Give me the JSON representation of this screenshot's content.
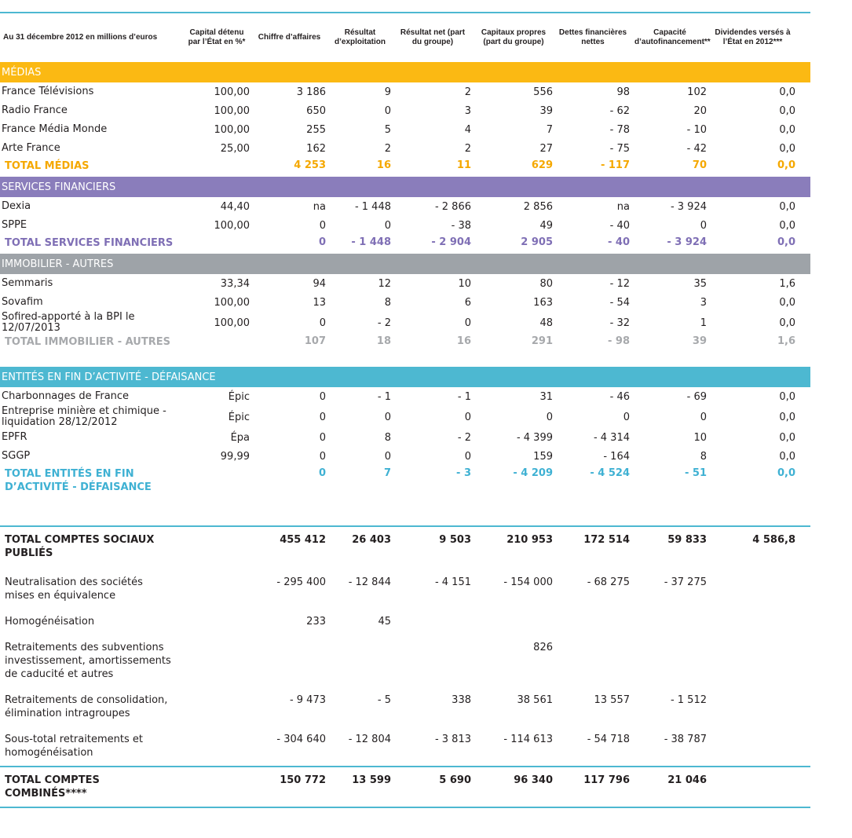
{
  "table": {
    "header": [
      "Au 31 décembre 2012 en millions d’euros",
      "Capital détenu par l’État en %*",
      "Chiffre d’affaires",
      "Résultat d’exploitation",
      "Résultat net (part du groupe)",
      "Capitaux propres (part du groupe)",
      "Dettes financières nettes",
      "Capacité d’autofinancement**",
      "Dividendes versés à l’État en 2012***"
    ],
    "sections": [
      {
        "title": "MÉDIAS",
        "rows": [
          {
            "label": "France Télévisions",
            "cells": [
              "100,00",
              "3 186",
              "9",
              "2",
              "556",
              "98",
              "102",
              "0,0"
            ]
          },
          {
            "label": "Radio France",
            "cells": [
              "100,00",
              "650",
              "0",
              "3",
              "39",
              "- 62",
              "20",
              "0,0"
            ]
          },
          {
            "label": "France Média Monde",
            "cells": [
              "100,00",
              "255",
              "5",
              "4",
              "7",
              "- 78",
              "- 10",
              "0,0"
            ]
          },
          {
            "label": "Arte France",
            "cells": [
              "25,00",
              "162",
              "2",
              "2",
              "27",
              "- 75",
              "- 42",
              "0,0"
            ]
          }
        ],
        "total": {
          "label": "TOTAL MÉDIAS",
          "cells": [
            null,
            "4 253",
            "16",
            "11",
            "629",
            "- 117",
            "70",
            "0,0"
          ]
        }
      },
      {
        "title": "SERVICES FINANCIERS",
        "rows": [
          {
            "label": "Dexia",
            "cells": [
              "44,40",
              "na",
              "- 1 448",
              "- 2 866",
              "2 856",
              "na",
              "- 3 924",
              "0,0"
            ]
          },
          {
            "label": "SPPE",
            "cells": [
              "100,00",
              "0",
              "0",
              "- 38",
              "49",
              "- 40",
              "0",
              "0,0"
            ]
          }
        ],
        "total": {
          "label": "TOTAL SERVICES FINANCIERS",
          "cells": [
            null,
            "0",
            "- 1 448",
            "- 2 904",
            "2 905",
            "- 40",
            "- 3 924",
            "0,0"
          ]
        }
      },
      {
        "title": "IMMOBILIER - AUTRES",
        "rows": [
          {
            "label": "Semmaris",
            "cells": [
              "33,34",
              "94",
              "12",
              "10",
              "80",
              "- 12",
              "35",
              "1,6"
            ]
          },
          {
            "label": "Sovafim",
            "cells": [
              "100,00",
              "13",
              "8",
              "6",
              "163",
              "- 54",
              "3",
              "0,0"
            ]
          },
          {
            "label": "Sofired-apporté à la BPI le 12/07/2013",
            "cells": [
              "100,00",
              "0",
              "- 2",
              "0",
              "48",
              "- 32",
              "1",
              "0,0"
            ]
          }
        ],
        "total": {
          "label": "TOTAL IMMOBILIER - AUTRES",
          "cells": [
            null,
            "107",
            "18",
            "16",
            "291",
            "- 98",
            "39",
            "1,6"
          ]
        }
      },
      {
        "title": "ENTITÉS EN FIN D’ACTIVITÉ - DÉFAISANCE",
        "rows": [
          {
            "label": "Charbonnages de France",
            "cells": [
              "Épic",
              "0",
              "- 1",
              "- 1",
              "31",
              "- 46",
              "- 69",
              "0,0"
            ]
          },
          {
            "label": "Entreprise minière et chimique - liquidation 28/12/2012",
            "cells": [
              "Épic",
              "0",
              "0",
              "0",
              "0",
              "0",
              "0",
              "0,0"
            ]
          },
          {
            "label": "EPFR",
            "cells": [
              "Épa",
              "0",
              "8",
              "- 2",
              "- 4 399",
              "- 4 314",
              "10",
              "0,0"
            ]
          },
          {
            "label": "SGGP",
            "cells": [
              "99,99",
              "0",
              "0",
              "0",
              "159",
              "- 164",
              "8",
              "0,0"
            ]
          }
        ],
        "total": {
          "label": "TOTAL ENTITÉS EN FIN D’ACTIVITÉ - DÉFAISANCE",
          "cells": [
            null,
            "0",
            "7",
            "- 3",
            "- 4 209",
            "- 4 524",
            "- 51",
            "0,0"
          ]
        }
      }
    ],
    "summary": [
      {
        "label": "TOTAL COMPTES SOCIAUX PUBLIÉS",
        "cells": [
          null,
          "455 412",
          "26 403",
          "9 503",
          "210 953",
          "172 514",
          "59 833",
          "4 586,8"
        ]
      },
      {
        "label": "Neutralisation des sociétés mises en équivalence",
        "cells": [
          null,
          "- 295 400",
          "- 12 844",
          "- 4 151",
          "- 154 000",
          "- 68 275",
          "- 37 275",
          null
        ]
      },
      {
        "label": "Homogénéisation",
        "cells": [
          null,
          "233",
          "45",
          null,
          null,
          null,
          null,
          null
        ]
      },
      {
        "label": "Retraitements des subventions investissement, amortissements de caducité et autres",
        "cells": [
          null,
          null,
          null,
          null,
          "826",
          null,
          null,
          null
        ]
      },
      {
        "label": "Retraitements de consolidation, élimination intragroupes",
        "cells": [
          null,
          "- 9 473",
          "- 5",
          "338",
          "38 561",
          "13 557",
          "- 1 512",
          null
        ]
      },
      {
        "label": "Sous-total retraitements et homogénéisation",
        "cells": [
          null,
          "- 304 640",
          "- 12 804",
          "- 3 813",
          "- 114 613",
          "- 54 718",
          "- 38 787",
          null
        ]
      },
      {
        "label": "TOTAL COMPTES COMBINÉS****",
        "cells": [
          null,
          "150 772",
          "13 599",
          "5 690",
          "96 340",
          "117 796",
          "21 046",
          null
        ]
      }
    ]
  }
}
